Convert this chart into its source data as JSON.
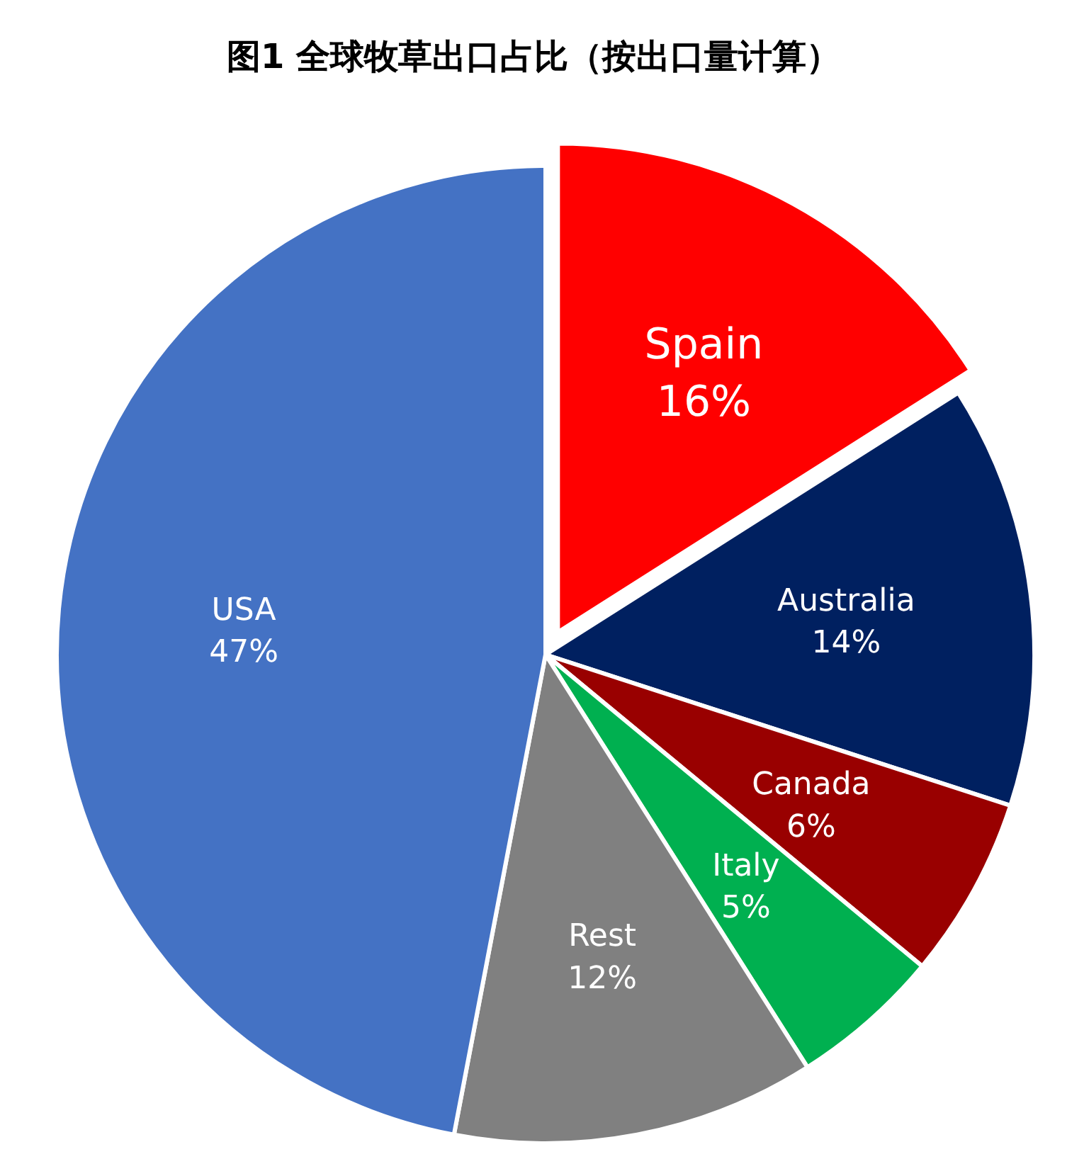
{
  "chart_data": {
    "type": "pie",
    "title": "图1 全球牧草出口占比（按出口量计算）",
    "categories": [
      "Spain",
      "Australia",
      "Canada",
      "Italy",
      "Rest",
      "USA"
    ],
    "values": [
      16,
      14,
      6,
      5,
      12,
      47
    ],
    "colors": [
      "#ff0000",
      "#002060",
      "#990000",
      "#00b050",
      "#808080",
      "#4472c4"
    ],
    "value_labels": [
      "16%",
      "14%",
      "6%",
      "5%",
      "12%",
      "47%"
    ]
  }
}
